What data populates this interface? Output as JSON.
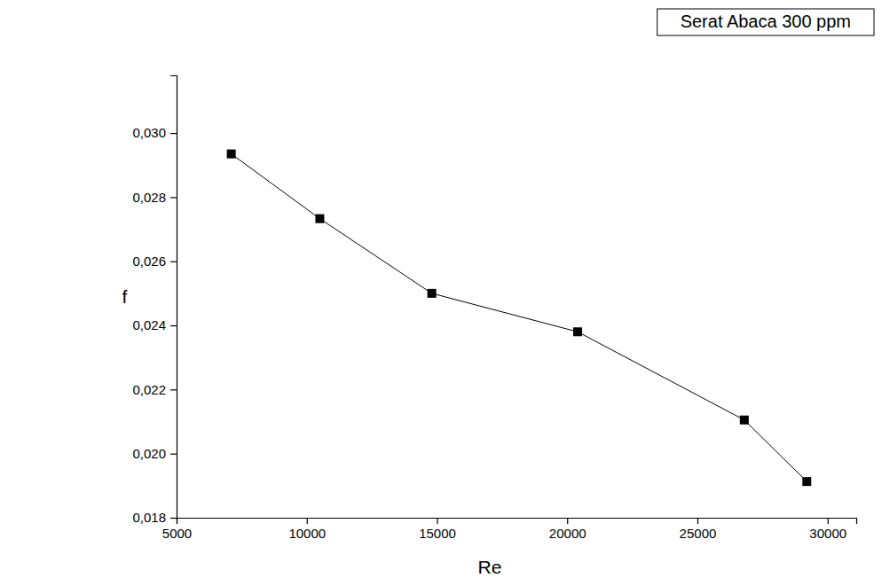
{
  "chart_data": {
    "type": "line",
    "x_label": "Re",
    "y_label": "f",
    "x": [
      7100,
      10500,
      14800,
      20400,
      26800,
      29200
    ],
    "series": [
      {
        "name": "Serat Abaca 300 ppm",
        "color": "#000000",
        "marker": "square",
        "line_style": "solid",
        "values": [
          0.02935,
          0.02733,
          0.025,
          0.0238,
          0.02105,
          0.01913
        ]
      }
    ],
    "xlim": [
      5000,
      31100
    ],
    "ylim": [
      0.018,
      0.0318
    ],
    "xticks": [
      5000,
      10000,
      15000,
      20000,
      25000,
      30000
    ],
    "yticks": [
      {
        "value": 0.018,
        "label": "0,018"
      },
      {
        "value": 0.02,
        "label": "0,020"
      },
      {
        "value": 0.022,
        "label": "0,022"
      },
      {
        "value": 0.024,
        "label": "0,024"
      },
      {
        "value": 0.026,
        "label": "0,026"
      },
      {
        "value": 0.028,
        "label": "0,028"
      },
      {
        "value": 0.03,
        "label": "0,030"
      }
    ],
    "legend": "top-right",
    "grid": false
  }
}
